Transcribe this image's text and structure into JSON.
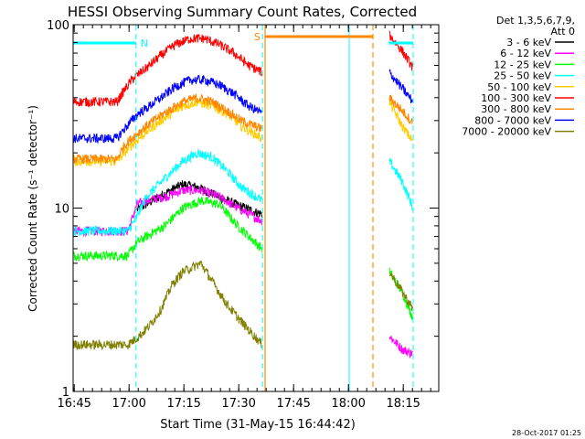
{
  "chart_data": {
    "type": "line",
    "title": "HESSI Observing Summary Count Rates, Corrected",
    "xlabel": "Start Time (31-May-15 16:44:42)",
    "ylabel": "Corrected Count Rate (s⁻¹ detector⁻¹)",
    "x_ticks": [
      "16:45",
      "17:00",
      "17:15",
      "17:30",
      "17:45",
      "18:00",
      "18:15"
    ],
    "x_tick_minutes": [
      0.3,
      15.3,
      30.3,
      45.3,
      60.3,
      75.3,
      90.3
    ],
    "x_range_minutes": [
      0,
      100
    ],
    "y_scale": "log",
    "ylim": [
      1,
      100
    ],
    "y_ticks": [
      "1",
      "10",
      "100"
    ],
    "legend_header": [
      "Det 1,3,5,6,7,9,",
      "Att 0"
    ],
    "legend_position": "top-right",
    "timestamp": "28-Oct-2017 01:25",
    "flag_labels": {
      "night": "N",
      "saa": "S"
    },
    "night_intervals": [
      [
        -1,
        17.2
      ],
      [
        86.3,
        93.0
      ]
    ],
    "saa_intervals": [
      [
        52.5,
        82.0
      ]
    ],
    "vlines_cyan": [
      [
        0.0,
        "solid"
      ],
      [
        17.2,
        "dashed"
      ],
      [
        51.8,
        "dashed"
      ],
      [
        75.5,
        "solid"
      ],
      [
        93.0,
        "dashed"
      ]
    ],
    "vlines_orange": [
      [
        52.5,
        "solid"
      ],
      [
        82.0,
        "dashed"
      ]
    ],
    "series": [
      {
        "name": "3 - 6 keV",
        "color": "#000000",
        "points": [
          [
            17.5,
            9.8
          ],
          [
            20,
            10.5
          ],
          [
            25,
            12
          ],
          [
            30,
            13.5
          ],
          [
            34,
            13
          ],
          [
            38,
            12
          ],
          [
            42,
            11
          ],
          [
            46,
            10.2
          ],
          [
            50,
            9.5
          ],
          [
            51.7,
            9.3
          ]
        ]
      },
      {
        "name": "6 - 12 keV",
        "color": "#ff00ff",
        "points": [
          [
            0,
            7.5
          ],
          [
            15,
            7.5
          ],
          [
            17.5,
            10.5
          ],
          [
            20,
            11
          ],
          [
            25,
            11.5
          ],
          [
            30,
            12.5
          ],
          [
            35,
            12.5
          ],
          [
            40,
            11.5
          ],
          [
            45,
            10
          ],
          [
            51.7,
            8.5
          ],
          [
            86.5,
            2
          ],
          [
            90,
            1.7
          ],
          [
            93,
            1.6
          ]
        ]
      },
      {
        "name": "12 - 25 keV",
        "color": "#00ff00",
        "points": [
          [
            0,
            5.5
          ],
          [
            15,
            5.5
          ],
          [
            17.5,
            6.5
          ],
          [
            20,
            7
          ],
          [
            25,
            8
          ],
          [
            30,
            10
          ],
          [
            35,
            11
          ],
          [
            40,
            10.5
          ],
          [
            45,
            8
          ],
          [
            51.7,
            6
          ],
          [
            86.5,
            4.5
          ],
          [
            90,
            3.5
          ],
          [
            93,
            2.5
          ]
        ]
      },
      {
        "name": "25 - 50 keV",
        "color": "#00ffff",
        "points": [
          [
            0,
            7.5
          ],
          [
            15,
            7.5
          ],
          [
            17.5,
            9
          ],
          [
            20,
            11.5
          ],
          [
            25,
            14.5
          ],
          [
            30,
            18
          ],
          [
            34,
            20
          ],
          [
            38,
            19
          ],
          [
            42,
            16
          ],
          [
            46,
            13
          ],
          [
            51.7,
            11
          ],
          [
            86.5,
            18
          ],
          [
            90,
            14
          ],
          [
            93,
            10
          ]
        ]
      },
      {
        "name": "50 - 100 keV",
        "color": "#ffcc00",
        "points": [
          [
            0,
            18
          ],
          [
            12,
            18
          ],
          [
            14,
            20
          ],
          [
            16,
            22
          ],
          [
            18,
            24
          ],
          [
            20,
            26
          ],
          [
            24,
            30
          ],
          [
            30,
            36
          ],
          [
            34,
            38
          ],
          [
            38,
            36
          ],
          [
            42,
            33
          ],
          [
            46,
            28
          ],
          [
            51.7,
            24
          ],
          [
            86.5,
            38
          ],
          [
            90,
            28
          ],
          [
            93,
            23
          ]
        ]
      },
      {
        "name": "100 - 300 keV",
        "color": "#ff0000",
        "points": [
          [
            0,
            38
          ],
          [
            12,
            38
          ],
          [
            14,
            44
          ],
          [
            16,
            50
          ],
          [
            18,
            54
          ],
          [
            20,
            58
          ],
          [
            24,
            68
          ],
          [
            28,
            78
          ],
          [
            32,
            84
          ],
          [
            36,
            84
          ],
          [
            40,
            78
          ],
          [
            44,
            70
          ],
          [
            48,
            60
          ],
          [
            51.7,
            55
          ],
          [
            86.5,
            88
          ],
          [
            90,
            72
          ],
          [
            93,
            58
          ]
        ]
      },
      {
        "name": "300 - 800 keV",
        "color": "#ff8800",
        "points": [
          [
            0,
            18.5
          ],
          [
            12,
            18.5
          ],
          [
            14,
            22
          ],
          [
            16,
            24
          ],
          [
            18,
            26
          ],
          [
            20,
            28
          ],
          [
            24,
            32
          ],
          [
            30,
            38
          ],
          [
            34,
            40
          ],
          [
            38,
            38
          ],
          [
            42,
            34
          ],
          [
            46,
            30
          ],
          [
            51.7,
            27
          ],
          [
            86.5,
            40
          ],
          [
            90,
            34
          ],
          [
            93,
            29
          ]
        ]
      },
      {
        "name": "800 - 7000 keV",
        "color": "#0000ff",
        "points": [
          [
            0,
            24
          ],
          [
            12,
            24
          ],
          [
            14,
            27
          ],
          [
            16,
            30
          ],
          [
            18,
            33
          ],
          [
            20,
            35
          ],
          [
            24,
            40
          ],
          [
            28,
            46
          ],
          [
            32,
            50
          ],
          [
            36,
            50
          ],
          [
            40,
            47
          ],
          [
            44,
            42
          ],
          [
            48,
            36
          ],
          [
            51.7,
            33
          ],
          [
            86.5,
            55
          ],
          [
            90,
            45
          ],
          [
            93,
            38
          ]
        ]
      },
      {
        "name": "7000 - 20000 keV",
        "color": "#808000",
        "points": [
          [
            0,
            1.8
          ],
          [
            15,
            1.8
          ],
          [
            18,
            2
          ],
          [
            21,
            2.3
          ],
          [
            24,
            2.8
          ],
          [
            27,
            3.8
          ],
          [
            30,
            4.5
          ],
          [
            35,
            5
          ],
          [
            38,
            4
          ],
          [
            42,
            3
          ],
          [
            46,
            2.4
          ],
          [
            51.7,
            1.8
          ],
          [
            86.5,
            4.5
          ],
          [
            90,
            3.5
          ],
          [
            93,
            2.8
          ]
        ]
      }
    ]
  }
}
